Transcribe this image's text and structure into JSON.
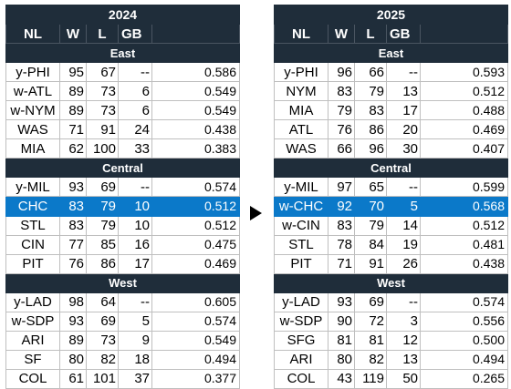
{
  "tables": [
    {
      "year": "2024",
      "headers": {
        "team": "NL",
        "w": "W",
        "l": "L",
        "gb": "GB",
        "pct": ""
      },
      "divisions": [
        {
          "name": "East",
          "teams": [
            {
              "team": "y-PHI",
              "w": "95",
              "l": "67",
              "gb": "--",
              "pct": "0.586"
            },
            {
              "team": "w-ATL",
              "w": "89",
              "l": "73",
              "gb": "6",
              "pct": "0.549"
            },
            {
              "team": "w-NYM",
              "w": "89",
              "l": "73",
              "gb": "6",
              "pct": "0.549"
            },
            {
              "team": "WAS",
              "w": "71",
              "l": "91",
              "gb": "24",
              "pct": "0.438"
            },
            {
              "team": "MIA",
              "w": "62",
              "l": "100",
              "gb": "33",
              "pct": "0.383"
            }
          ]
        },
        {
          "name": "Central",
          "teams": [
            {
              "team": "y-MIL",
              "w": "93",
              "l": "69",
              "gb": "--",
              "pct": "0.574"
            },
            {
              "team": "CHC",
              "w": "83",
              "l": "79",
              "gb": "10",
              "pct": "0.512",
              "highlight": true
            },
            {
              "team": "STL",
              "w": "83",
              "l": "79",
              "gb": "10",
              "pct": "0.512"
            },
            {
              "team": "CIN",
              "w": "77",
              "l": "85",
              "gb": "16",
              "pct": "0.475"
            },
            {
              "team": "PIT",
              "w": "76",
              "l": "86",
              "gb": "17",
              "pct": "0.469"
            }
          ]
        },
        {
          "name": "West",
          "teams": [
            {
              "team": "y-LAD",
              "w": "98",
              "l": "64",
              "gb": "--",
              "pct": "0.605"
            },
            {
              "team": "w-SDP",
              "w": "93",
              "l": "69",
              "gb": "5",
              "pct": "0.574"
            },
            {
              "team": "ARI",
              "w": "89",
              "l": "73",
              "gb": "9",
              "pct": "0.549"
            },
            {
              "team": "SF",
              "w": "80",
              "l": "82",
              "gb": "18",
              "pct": "0.494"
            },
            {
              "team": "COL",
              "w": "61",
              "l": "101",
              "gb": "37",
              "pct": "0.377"
            }
          ]
        }
      ]
    },
    {
      "year": "2025",
      "headers": {
        "team": "NL",
        "w": "W",
        "l": "L",
        "gb": "GB",
        "pct": ""
      },
      "divisions": [
        {
          "name": "East",
          "teams": [
            {
              "team": "y-PHI",
              "w": "96",
              "l": "66",
              "gb": "--",
              "pct": "0.593"
            },
            {
              "team": "NYM",
              "w": "83",
              "l": "79",
              "gb": "13",
              "pct": "0.512"
            },
            {
              "team": "MIA",
              "w": "79",
              "l": "83",
              "gb": "17",
              "pct": "0.488"
            },
            {
              "team": "ATL",
              "w": "76",
              "l": "86",
              "gb": "20",
              "pct": "0.469"
            },
            {
              "team": "WAS",
              "w": "66",
              "l": "96",
              "gb": "30",
              "pct": "0.407"
            }
          ]
        },
        {
          "name": "Central",
          "teams": [
            {
              "team": "y-MIL",
              "w": "97",
              "l": "65",
              "gb": "--",
              "pct": "0.599"
            },
            {
              "team": "w-CHC",
              "w": "92",
              "l": "70",
              "gb": "5",
              "pct": "0.568",
              "highlight": true
            },
            {
              "team": "w-CIN",
              "w": "83",
              "l": "79",
              "gb": "14",
              "pct": "0.512"
            },
            {
              "team": "STL",
              "w": "78",
              "l": "84",
              "gb": "19",
              "pct": "0.481"
            },
            {
              "team": "PIT",
              "w": "71",
              "l": "91",
              "gb": "26",
              "pct": "0.438"
            }
          ]
        },
        {
          "name": "West",
          "teams": [
            {
              "team": "y-LAD",
              "w": "93",
              "l": "69",
              "gb": "--",
              "pct": "0.574"
            },
            {
              "team": "w-SDP",
              "w": "90",
              "l": "72",
              "gb": "3",
              "pct": "0.556"
            },
            {
              "team": "SFG",
              "w": "81",
              "l": "81",
              "gb": "12",
              "pct": "0.500"
            },
            {
              "team": "ARI",
              "w": "80",
              "l": "82",
              "gb": "13",
              "pct": "0.494"
            },
            {
              "team": "COL",
              "w": "43",
              "l": "119",
              "gb": "50",
              "pct": "0.265"
            }
          ]
        }
      ]
    }
  ],
  "colors": {
    "header_bg": "#1f2d3a",
    "highlight_bg": "#0b79c9",
    "header_text": "#ffffff"
  },
  "arrow_icon": "play-arrow-icon"
}
